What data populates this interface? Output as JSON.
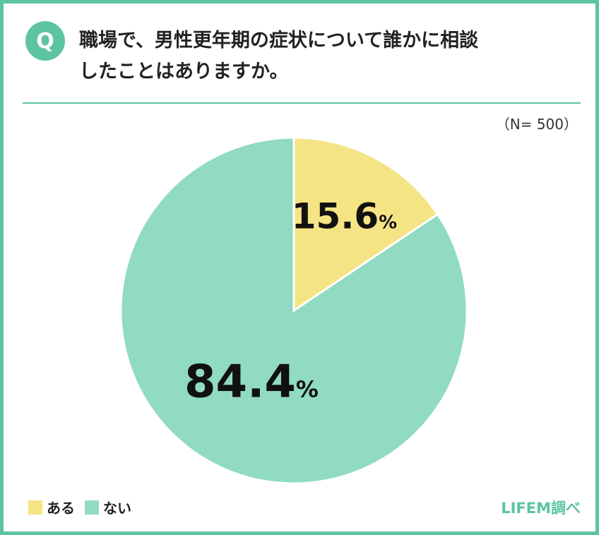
{
  "question": {
    "badge": "Q",
    "line1": "職場で、男性更年期の症状について誰かに相談",
    "line2": "したことはありますか。"
  },
  "sample_size": "（N= 500）",
  "source": "LIFEM調べ",
  "colors": {
    "accent": "#5cc4a0",
    "aru": "#f4e484",
    "nai": "#90dbc1"
  },
  "chart_data": {
    "type": "pie",
    "title": "職場で、男性更年期の症状について誰かに相談したことはありますか。",
    "slices": [
      {
        "label": "ある",
        "value": 15.6,
        "display": "15.6",
        "unit": "%",
        "color": "#f4e484"
      },
      {
        "label": "ない",
        "value": 84.4,
        "display": "84.4",
        "unit": "%",
        "color": "#90dbc1"
      }
    ],
    "legend_position": "bottom-left"
  }
}
